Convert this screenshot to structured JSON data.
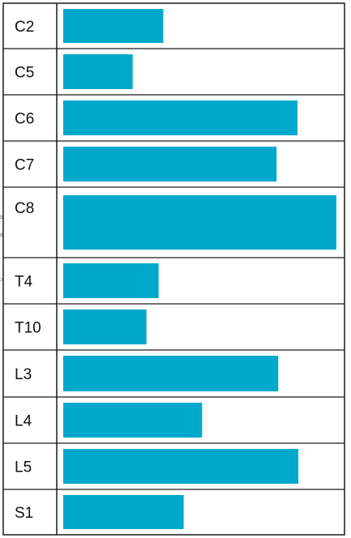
{
  "chart_data": {
    "type": "bar",
    "orientation": "horizontal",
    "title": "",
    "xlabel": "",
    "ylabel": "",
    "categories": [
      "C2",
      "C5",
      "C6",
      "C7",
      "C8",
      "T4",
      "T10",
      "L3",
      "L4",
      "L5",
      "S1"
    ],
    "values": [
      36.3,
      25.2,
      85.0,
      77.4,
      99.1,
      34.6,
      30.2,
      78.0,
      50.4,
      85.3,
      43.7
    ],
    "xlim": [
      0,
      100
    ],
    "grid": false,
    "legend": "none",
    "colors": {
      "bar": "#00A8CC",
      "border": "#1a1a1a",
      "text": "#111111"
    }
  }
}
